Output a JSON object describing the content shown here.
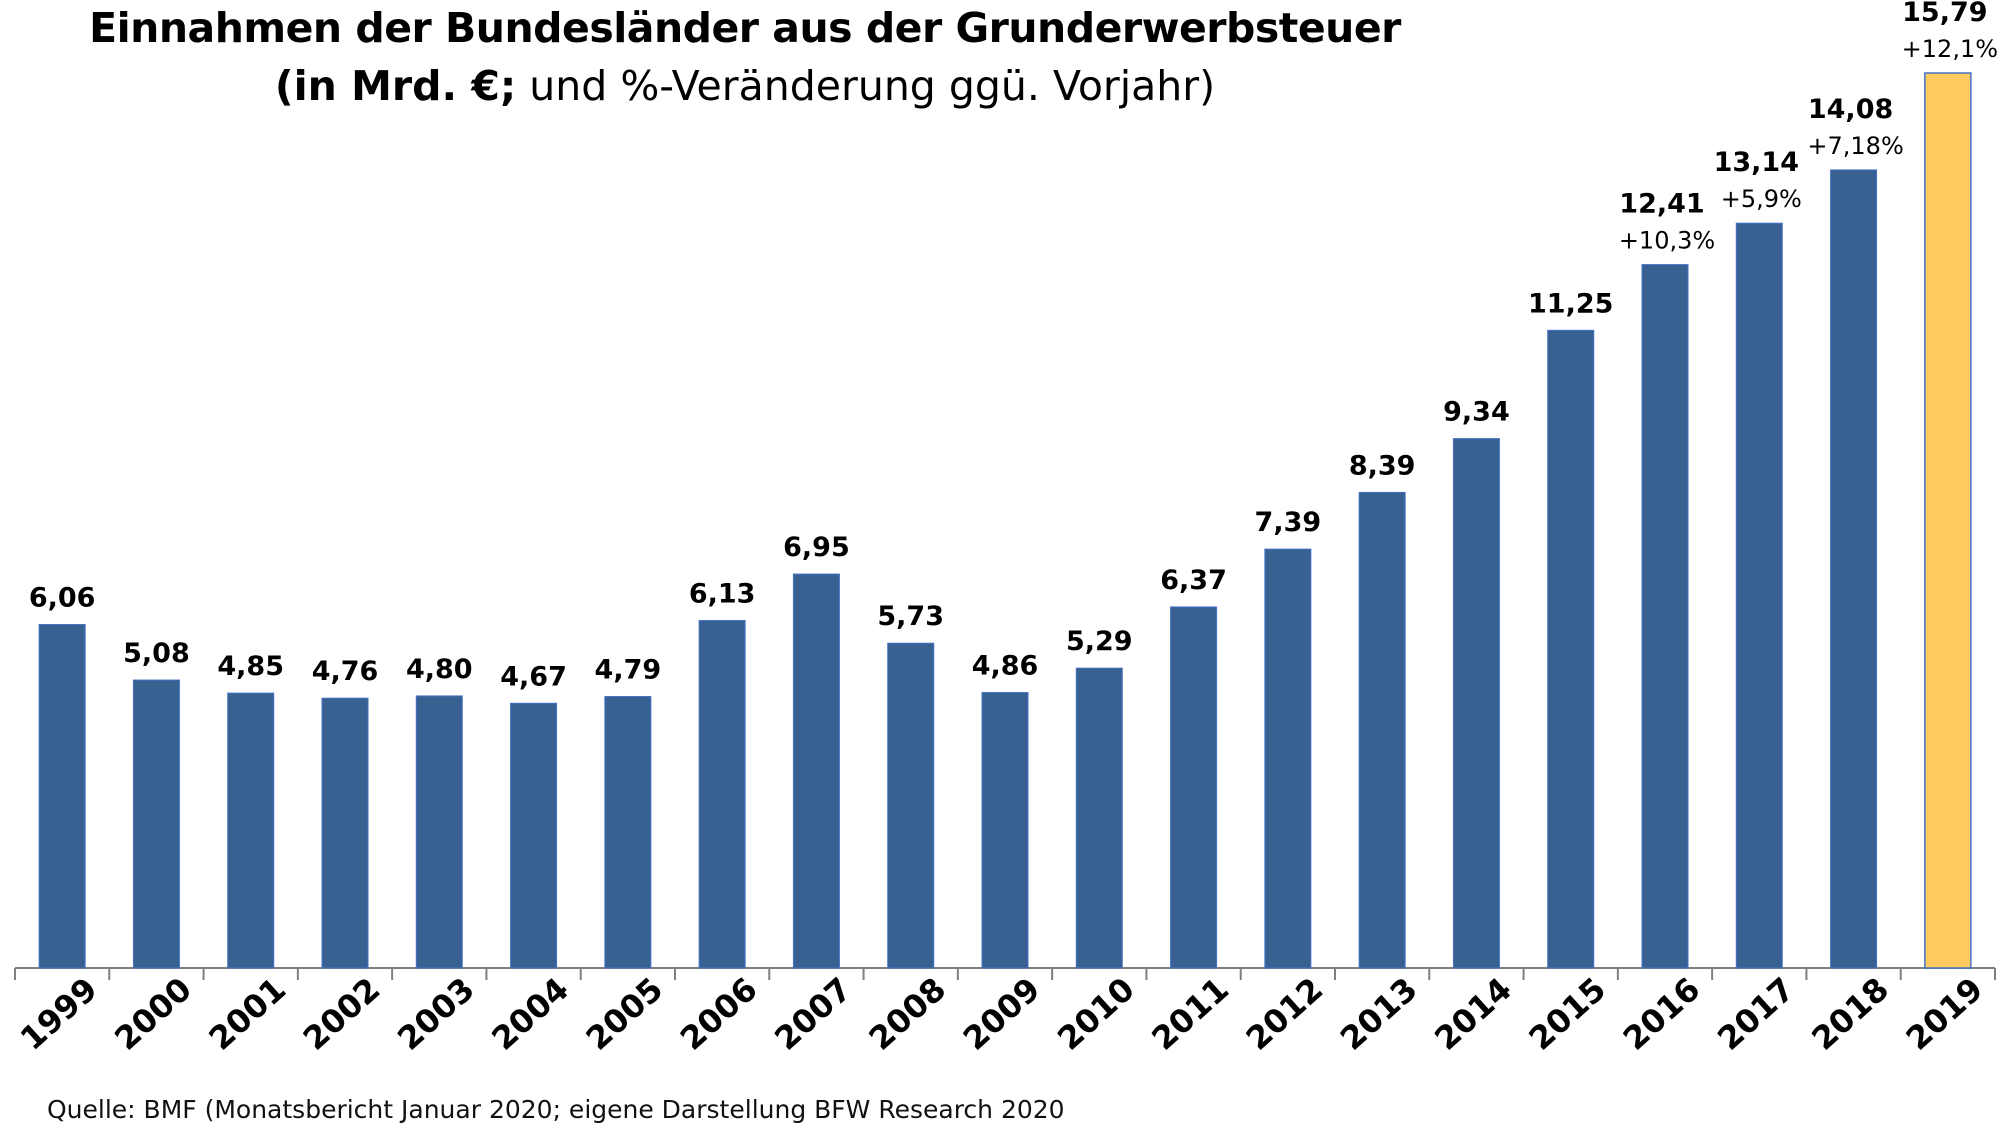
{
  "title_line1": "Einnahmen der Bundesländer aus der Grunderwerbsteuer",
  "title_line2_bold": "(in Mrd. €;",
  "title_line2_rest": " und %-Veränderung ggü. Vorjahr)",
  "title_line2_close": ")",
  "source": "Quelle: BMF (Monatsbericht Januar 2020; eigene Darstellung BFW Research 2020",
  "colors": {
    "bar": "#386192",
    "highlight": "#FFCA5F",
    "bar_stroke": "#4472C4",
    "axis": "#7f7f7f"
  },
  "chart_data": {
    "type": "bar",
    "title": "Einnahmen der Bundesländer aus der Grunderwerbsteuer",
    "xlabel": "",
    "ylabel": "",
    "ylim": [
      0,
      16.5
    ],
    "grid": false,
    "categories": [
      "1999",
      "2000",
      "2001",
      "2002",
      "2003",
      "2004",
      "2005",
      "2006",
      "2007",
      "2008",
      "2009",
      "2010",
      "2011",
      "2012",
      "2013",
      "2014",
      "2015",
      "2016",
      "2017",
      "2018",
      "2019"
    ],
    "values": [
      6.06,
      5.08,
      4.85,
      4.76,
      4.8,
      4.67,
      4.79,
      6.13,
      6.95,
      5.73,
      4.86,
      5.29,
      6.37,
      7.39,
      8.39,
      9.34,
      11.25,
      12.41,
      13.14,
      14.08,
      15.79
    ],
    "value_labels": [
      "6,06",
      "5,08",
      "4,85",
      "4,76",
      "4,80",
      "4,67",
      "4,79",
      "6,13",
      "6,95",
      "5,73",
      "4,86",
      "5,29",
      "6,37",
      "7,39",
      "8,39",
      "9,34",
      "11,25",
      "12,41",
      "13,14",
      "14,08",
      "15,79"
    ],
    "change_labels": [
      "",
      "",
      "",
      "",
      "",
      "",
      "",
      "",
      "",
      "",
      "",
      "",
      "",
      "",
      "",
      "",
      "",
      "+10,3%",
      "+5,9%",
      "+7,18%",
      "+12,1%"
    ],
    "highlight_index": 20
  }
}
